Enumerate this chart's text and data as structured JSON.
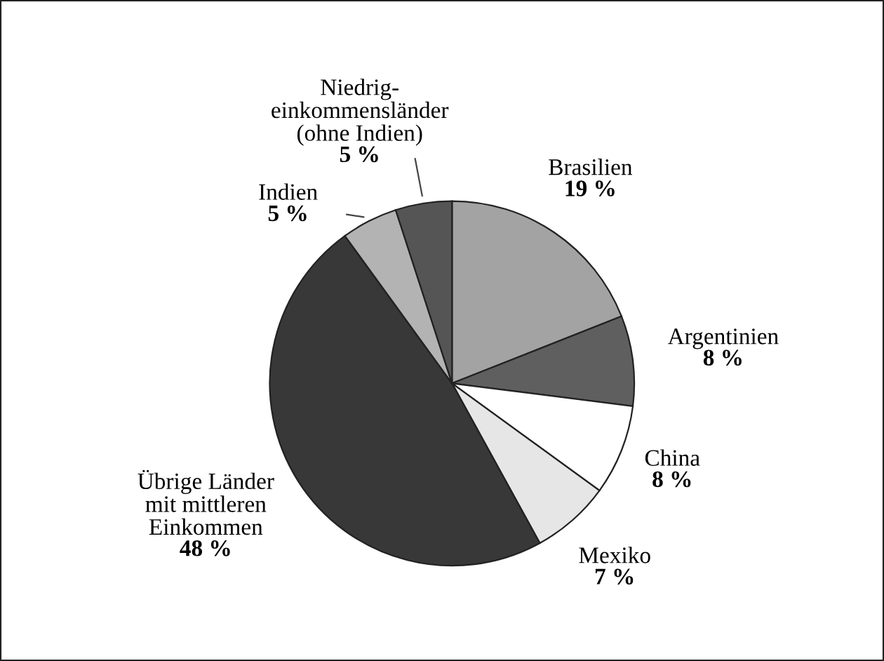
{
  "chart_data": {
    "type": "pie",
    "categories": [
      "Brasilien",
      "Argentinien",
      "China",
      "Mexiko",
      "Übrige Länder\nmit mittleren\nEinkommen",
      "Indien",
      "Niedrig-\neinkommensländer\n(ohne Indien)"
    ],
    "values": [
      19,
      8,
      8,
      7,
      48,
      5,
      5
    ],
    "value_labels": [
      "19 %",
      "8 %",
      "8 %",
      "7 %",
      "48 %",
      "5 %",
      "5 %"
    ],
    "colors": [
      "#a3a3a3",
      "#5f5f5f",
      "#ffffff",
      "#e6e6e6",
      "#383838",
      "#b3b3b3",
      "#555555"
    ],
    "legend": false
  }
}
